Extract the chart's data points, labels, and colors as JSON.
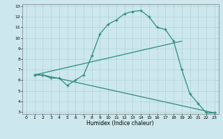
{
  "line1_x": [
    1,
    2,
    3,
    4,
    5,
    6,
    7,
    8,
    9,
    10,
    11,
    12,
    13,
    14,
    15,
    16,
    17,
    18,
    19,
    20,
    21,
    22,
    23
  ],
  "line1_y": [
    6.5,
    6.5,
    6.2,
    6.2,
    5.5,
    6.0,
    6.5,
    8.3,
    10.4,
    11.3,
    11.7,
    12.3,
    12.5,
    12.6,
    12.0,
    11.0,
    10.8,
    9.7,
    7.0,
    4.7,
    3.8,
    2.9,
    2.9
  ],
  "line2_x": [
    1,
    2,
    23
  ],
  "line2_y": [
    6.5,
    6.5,
    2.9
  ],
  "line3_x": [
    1,
    19
  ],
  "line3_y": [
    6.5,
    9.7
  ],
  "color": "#2e8b7a",
  "bg_color": "#cce8ec",
  "xlabel": "Humidex (Indice chaleur)",
  "xlim": [
    -0.5,
    23.5
  ],
  "ylim": [
    2.8,
    13.2
  ],
  "xticks": [
    0,
    1,
    2,
    3,
    4,
    5,
    6,
    7,
    8,
    9,
    10,
    11,
    12,
    13,
    14,
    15,
    16,
    17,
    18,
    19,
    20,
    21,
    22,
    23
  ],
  "yticks": [
    3,
    4,
    5,
    6,
    7,
    8,
    9,
    10,
    11,
    12,
    13
  ],
  "grid_color": "#aaccd4",
  "marker": "+"
}
